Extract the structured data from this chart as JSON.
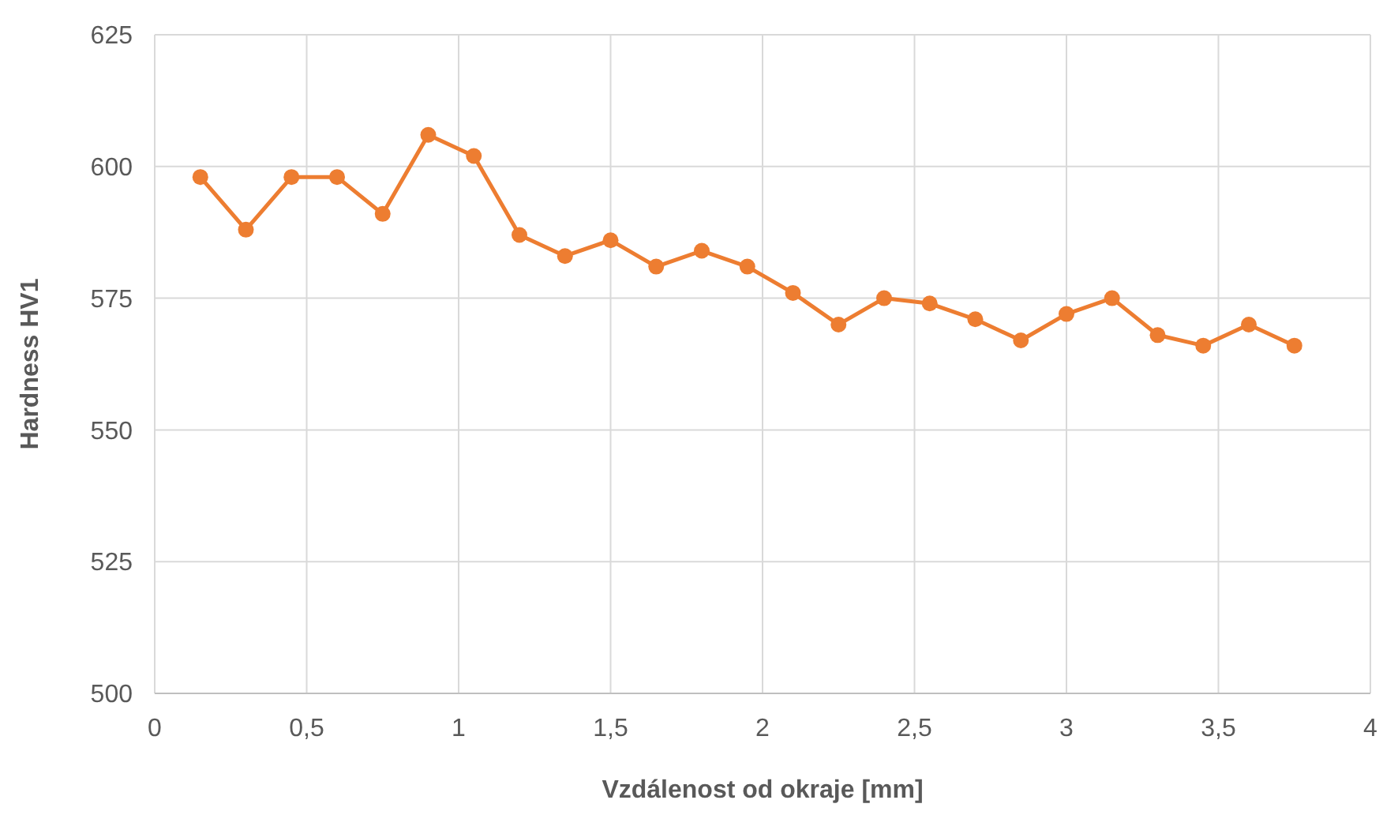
{
  "chart_data": {
    "type": "line",
    "xlabel": "Vzdálenost od okraje [mm]",
    "ylabel": "Hardness HV1",
    "x": [
      0.15,
      0.3,
      0.45,
      0.6,
      0.75,
      0.9,
      1.05,
      1.2,
      1.35,
      1.5,
      1.65,
      1.8,
      1.95,
      2.1,
      2.25,
      2.4,
      2.55,
      2.7,
      2.85,
      3.0,
      3.15,
      3.3,
      3.45,
      3.6,
      3.75
    ],
    "series": [
      {
        "color": "#ed7d31",
        "values": [
          598,
          588,
          598,
          598,
          591,
          606,
          602,
          587,
          583,
          586,
          581,
          584,
          581,
          576,
          570,
          575,
          574,
          571,
          567,
          572,
          575,
          568,
          566,
          570,
          566
        ]
      }
    ],
    "xlim": [
      0,
      4
    ],
    "xticks": [
      0,
      {
        "value": 0.5,
        "label": "0,5"
      },
      1,
      {
        "value": 1.5,
        "label": "1,5"
      },
      2,
      {
        "value": 2.5,
        "label": "2,5"
      },
      3,
      {
        "value": 3.5,
        "label": "3,5"
      },
      4
    ],
    "ylim": [
      500,
      625
    ],
    "yticks": [
      500,
      525,
      550,
      575,
      600,
      625
    ],
    "grid": true,
    "marker": "circle",
    "line_style": "solid"
  }
}
